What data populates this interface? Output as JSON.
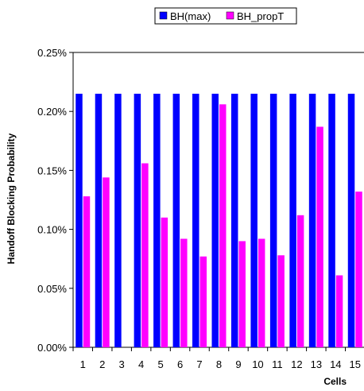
{
  "chart_data": {
    "type": "bar",
    "title": "",
    "xlabel": "Cells",
    "ylabel": "Handoff Blocking Probability",
    "categories": [
      "1",
      "2",
      "3",
      "4",
      "5",
      "6",
      "7",
      "8",
      "9",
      "10",
      "11",
      "12",
      "13",
      "14",
      "15"
    ],
    "ylim": [
      0,
      0.25
    ],
    "yticks": [
      "0.00%",
      "0.05%",
      "0.10%",
      "0.15%",
      "0.20%",
      "0.25%"
    ],
    "grid": false,
    "legend_position": "top",
    "series": [
      {
        "name": "BH(max)",
        "color": "#0000ff",
        "values": [
          0.215,
          0.215,
          0.215,
          0.215,
          0.215,
          0.215,
          0.215,
          0.215,
          0.215,
          0.215,
          0.215,
          0.215,
          0.215,
          0.215,
          0.215
        ]
      },
      {
        "name": "BH_propT",
        "color": "#ff00ff",
        "values": [
          0.128,
          0.144,
          0,
          0.156,
          0.11,
          0.092,
          0.077,
          0.206,
          0.09,
          0.092,
          0.078,
          0.112,
          0.187,
          0.061,
          0.132
        ]
      }
    ]
  }
}
